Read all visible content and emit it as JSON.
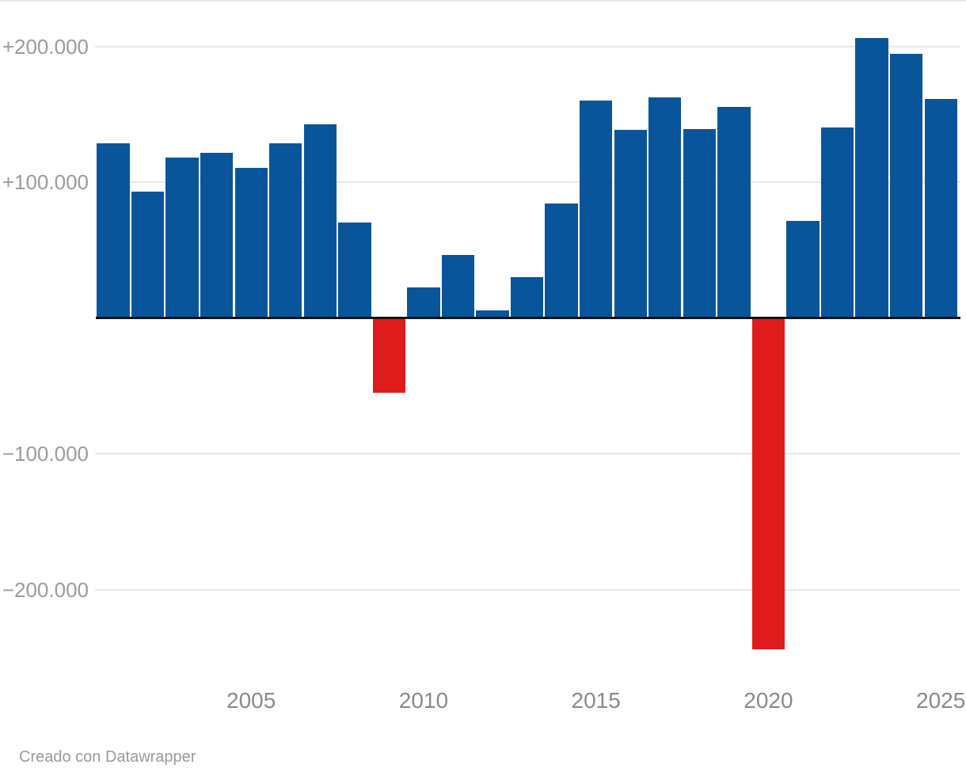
{
  "footer": {
    "credit": "Creado con Datawrapper"
  },
  "colors": {
    "background": "#ffffff",
    "positive_bar": "#09559c",
    "negative_bar": "#e01b1b",
    "gridline": "#e8e8e8",
    "baseline": "#111111",
    "y_label_text": "#9c9c9c",
    "x_label_text": "#8a8a8a",
    "footer_text": "#9a9a9a"
  },
  "chart_data": {
    "type": "bar",
    "x": [
      2001,
      2002,
      2003,
      2004,
      2005,
      2006,
      2007,
      2008,
      2009,
      2010,
      2011,
      2012,
      2013,
      2014,
      2015,
      2016,
      2017,
      2018,
      2019,
      2020,
      2021,
      2022,
      2023,
      2024,
      2025
    ],
    "values": [
      128000,
      93000,
      118000,
      121000,
      110000,
      128000,
      142000,
      70000,
      -55000,
      22000,
      46000,
      5000,
      30000,
      84000,
      160000,
      138000,
      162000,
      139000,
      155000,
      -244000,
      71000,
      140000,
      206000,
      194000,
      161000
    ],
    "y_ticks": [
      {
        "value": 200000,
        "label": "+200.000"
      },
      {
        "value": 100000,
        "label": "+100.000"
      },
      {
        "value": -100000,
        "label": "−100.000"
      },
      {
        "value": -200000,
        "label": "−200.000"
      }
    ],
    "x_ticks": [
      {
        "year": 2005,
        "label": "2005"
      },
      {
        "year": 2010,
        "label": "2010"
      },
      {
        "year": 2015,
        "label": "2015"
      },
      {
        "year": 2020,
        "label": "2020"
      },
      {
        "year": 2025,
        "label": "2025"
      }
    ],
    "title": "",
    "xlabel": "",
    "ylabel": "",
    "ylim": [
      -250000,
      230000
    ],
    "grid": true,
    "legend": false,
    "positive_color": "#09559c",
    "negative_color": "#e01b1b"
  }
}
